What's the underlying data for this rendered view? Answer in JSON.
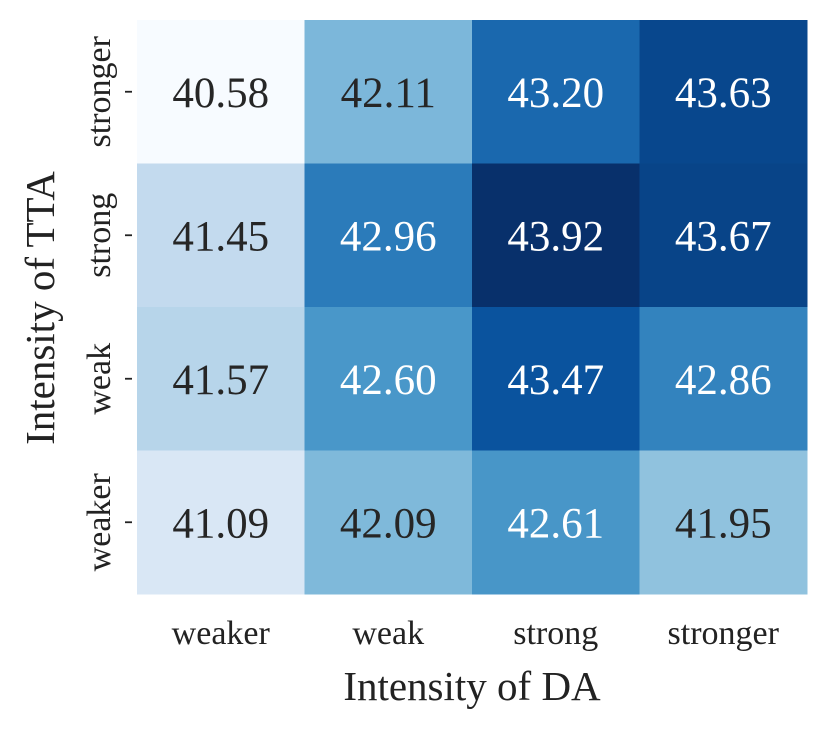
{
  "chart_data": {
    "type": "heatmap",
    "xlabel": "Intensity of DA",
    "ylabel": "Intensity of TTA",
    "x_categories": [
      "weaker",
      "weak",
      "strong",
      "stronger"
    ],
    "y_categories": [
      "stronger",
      "strong",
      "weak",
      "weaker"
    ],
    "values": [
      [
        40.58,
        42.11,
        43.2,
        43.63
      ],
      [
        41.45,
        42.96,
        43.92,
        43.67
      ],
      [
        41.57,
        42.6,
        43.47,
        42.86
      ],
      [
        41.09,
        42.09,
        42.61,
        41.95
      ]
    ],
    "value_labels": [
      [
        "40.58",
        "42.11",
        "43.20",
        "43.63"
      ],
      [
        "41.45",
        "42.96",
        "43.92",
        "43.67"
      ],
      [
        "41.57",
        "42.60",
        "43.47",
        "42.86"
      ],
      [
        "41.09",
        "42.09",
        "42.61",
        "41.95"
      ]
    ],
    "colormap": "Blues",
    "color_low": "#f7fbff",
    "color_high": "#08306b",
    "legend": "none",
    "grid": false
  }
}
